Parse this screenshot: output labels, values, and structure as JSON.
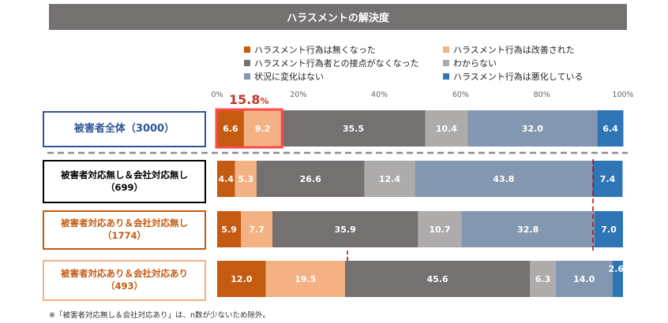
{
  "chart_data": {
    "type": "bar",
    "stacked": true,
    "orientation": "horizontal",
    "title": "ハラスメントの解決度",
    "xlim": [
      0,
      100
    ],
    "x_ticks": [
      "0%",
      "20%",
      "40%",
      "60%",
      "80%",
      "100%"
    ],
    "legend": [
      {
        "name": "ハラスメント行為は無くなった",
        "color": "#C55A11"
      },
      {
        "name": "ハラスメント行為は改善された",
        "color": "#F4B183"
      },
      {
        "name": "ハラスメント行為者との接点がなくなった",
        "color": "#767171"
      },
      {
        "name": "わからない",
        "color": "#AEABAB"
      },
      {
        "name": "状況に変化はない",
        "color": "#8497B0"
      },
      {
        "name": "ハラスメント行為は悪化している",
        "color": "#2E75B6"
      }
    ],
    "categories": [
      {
        "line1": "被害者全体（3000）",
        "line2": "",
        "border_color": "#2F5597",
        "text_color": "#2F5597"
      },
      {
        "line1": "被害者対応無し＆会社対応無し",
        "line2": "（699）",
        "border_color": "#000000",
        "text_color": "#000000"
      },
      {
        "line1": "被害者対応あり＆会社対応無し",
        "line2": "（1774）",
        "border_color": "#C55A11",
        "text_color": "#C55A11"
      },
      {
        "line1": "被害者対応あり＆会社対応あり",
        "line2": "（493）",
        "border_color": "#F4B183",
        "text_color": "#C55A11"
      }
    ],
    "series_values": [
      [
        6.6,
        9.2,
        35.5,
        10.4,
        32.0,
        6.4
      ],
      [
        4.4,
        5.3,
        26.6,
        12.4,
        43.8,
        7.4
      ],
      [
        5.9,
        7.7,
        35.9,
        10.7,
        32.8,
        7.0
      ],
      [
        12.0,
        19.5,
        45.6,
        6.3,
        14.0,
        2.6
      ]
    ],
    "value_labels": [
      [
        "6.6",
        "9.2",
        "35.5",
        "10.4",
        "32.0",
        "6.4"
      ],
      [
        "4.4",
        "5.3",
        "26.6",
        "12.4",
        "43.8",
        "7.4"
      ],
      [
        "5.9",
        "7.7",
        "35.9",
        "10.7",
        "32.8",
        "7.0"
      ],
      [
        "12.0",
        "19.5",
        "45.6",
        "6.3",
        "14.0",
        "2.6"
      ]
    ],
    "annotation": {
      "value": "15.8",
      "unit": "%",
      "highlight_color": "#FF4B4B"
    }
  },
  "footnote": "※「被害者対応無し＆会社対応あり」は、n数が少ないため除外。"
}
